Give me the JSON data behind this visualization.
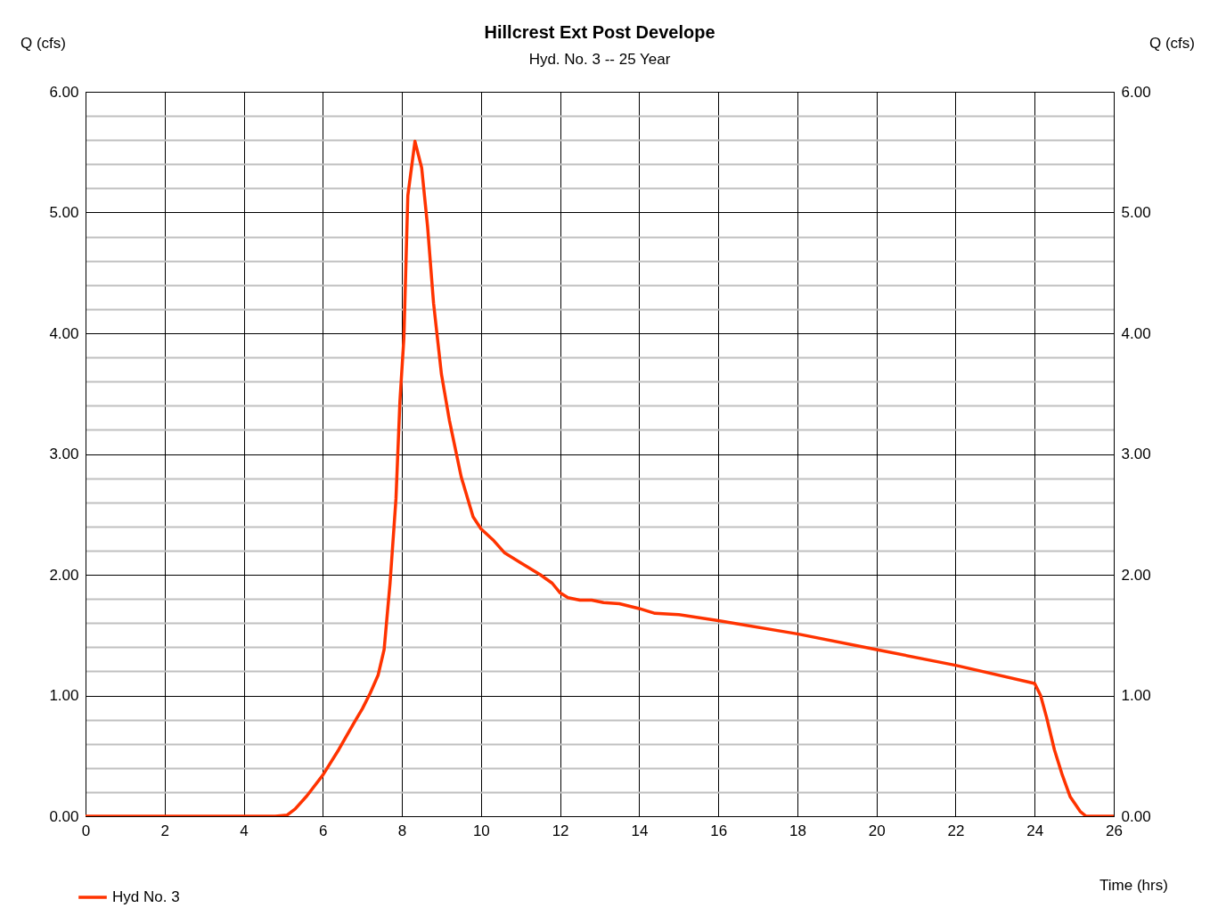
{
  "chart_data": {
    "type": "line",
    "title": "Hillcrest Ext Post Develope",
    "subtitle": "Hyd. No. 3 -- 25 Year",
    "xlabel": "Time (hrs)",
    "ylabel": "Q (cfs)",
    "y2label": "Q (cfs)",
    "x": [
      0,
      4.8,
      5.1,
      5.3,
      5.6,
      6,
      6.4,
      6.8,
      7,
      7.2,
      7.4,
      7.55,
      7.7,
      7.85,
      7.95,
      8.05,
      8.15,
      8.33,
      8.5,
      8.65,
      8.8,
      9,
      9.2,
      9.5,
      9.8,
      10,
      10.3,
      10.6,
      11,
      11.5,
      11.8,
      12,
      12.2,
      12.5,
      12.8,
      13.1,
      13.5,
      14,
      14.4,
      15,
      16,
      18,
      20,
      22,
      24,
      24.15,
      24.3,
      24.5,
      24.7,
      24.9,
      25.15,
      25.3,
      26
    ],
    "series": [
      {
        "name": "Hyd No. 3",
        "color": "#ff3300",
        "values": [
          0,
          0,
          0.01,
          0.06,
          0.17,
          0.34,
          0.55,
          0.78,
          0.89,
          1.02,
          1.17,
          1.38,
          1.93,
          2.63,
          3.44,
          3.96,
          5.14,
          5.59,
          5.37,
          4.88,
          4.25,
          3.66,
          3.28,
          2.81,
          2.48,
          2.38,
          2.29,
          2.18,
          2.1,
          2.0,
          1.93,
          1.85,
          1.81,
          1.79,
          1.79,
          1.77,
          1.76,
          1.72,
          1.68,
          1.67,
          1.62,
          1.51,
          1.38,
          1.25,
          1.1,
          1.0,
          0.82,
          0.55,
          0.34,
          0.16,
          0.04,
          0,
          0
        ]
      }
    ],
    "xlim": [
      0,
      26
    ],
    "xticks": [
      0,
      2,
      4,
      6,
      8,
      10,
      12,
      14,
      16,
      18,
      20,
      22,
      24,
      26
    ],
    "ylim": [
      0,
      6
    ],
    "yticks": [
      {
        "value": 0,
        "label": "0.00"
      },
      {
        "value": 0.2,
        "label": null
      },
      {
        "value": 0.4,
        "label": null
      },
      {
        "value": 0.6,
        "label": null
      },
      {
        "value": 0.8,
        "label": null
      },
      {
        "value": 1,
        "label": "1.00"
      },
      {
        "value": 1.2,
        "label": null
      },
      {
        "value": 1.4,
        "label": null
      },
      {
        "value": 1.6,
        "label": null
      },
      {
        "value": 1.8,
        "label": null
      },
      {
        "value": 2,
        "label": "2.00"
      },
      {
        "value": 2.2,
        "label": null
      },
      {
        "value": 2.4,
        "label": null
      },
      {
        "value": 2.6,
        "label": null
      },
      {
        "value": 2.8,
        "label": null
      },
      {
        "value": 3,
        "label": "3.00"
      },
      {
        "value": 3.2,
        "label": null
      },
      {
        "value": 3.4,
        "label": null
      },
      {
        "value": 3.6,
        "label": null
      },
      {
        "value": 3.8,
        "label": null
      },
      {
        "value": 4,
        "label": "4.00"
      },
      {
        "value": 4.2,
        "label": null
      },
      {
        "value": 4.4,
        "label": null
      },
      {
        "value": 4.6,
        "label": null
      },
      {
        "value": 4.8,
        "label": null
      },
      {
        "value": 5,
        "label": "5.00"
      },
      {
        "value": 5.2,
        "label": null
      },
      {
        "value": 5.4,
        "label": null
      },
      {
        "value": 5.6,
        "label": null
      },
      {
        "value": 5.8,
        "label": null
      },
      {
        "value": 6,
        "label": "6.00"
      }
    ],
    "y2lim": [
      0,
      6
    ],
    "y2ticks": [
      {
        "value": 0,
        "label": "0.00"
      },
      {
        "value": 1,
        "label": "1.00"
      },
      {
        "value": 2,
        "label": "2.00"
      },
      {
        "value": 3,
        "label": "3.00"
      },
      {
        "value": 4,
        "label": "4.00"
      },
      {
        "value": 5,
        "label": "5.00"
      },
      {
        "value": 6,
        "label": "6.00"
      }
    ],
    "grid": true,
    "legend": "bottom left",
    "line_style": "solid"
  }
}
